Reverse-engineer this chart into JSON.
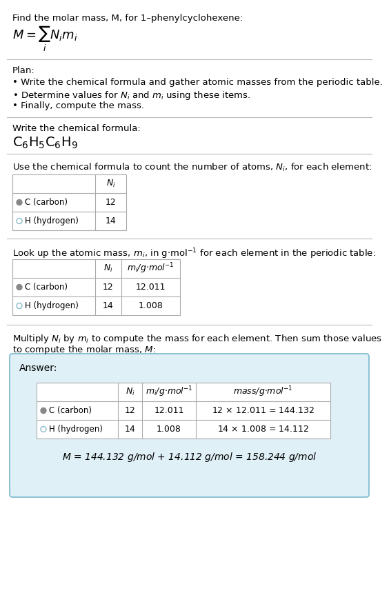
{
  "title_line1": "Find the molar mass, M, for 1–phenylcyclohexene:",
  "bg_color": "#ffffff",
  "section_line_color": "#bbbbbb",
  "plan_header": "Plan:",
  "plan_bullets": [
    "• Write the chemical formula and gather atomic masses from the periodic table.",
    "• Determine values for $N_i$ and $m_i$ using these items.",
    "• Finally, compute the mass."
  ],
  "formula_section_label": "Write the chemical formula:",
  "count_section_label": "Use the chemical formula to count the number of atoms, $N_i$, for each element:",
  "lookup_section_label": "Look up the atomic mass, $m_i$, in g$\\cdot$mol$^{-1}$ for each element in the periodic table:",
  "multiply_section_label": "Multiply $N_i$ by $m_i$ to compute the mass for each element. Then sum those values\nto compute the molar mass, $M$:",
  "answer_box_bg": "#dff0f7",
  "answer_box_border": "#7ab8cc",
  "answer_label": "Answer:",
  "carbon_color": "#888888",
  "hydrogen_color": "#88bbcc",
  "table_line_color": "#aaaaaa",
  "text_color": "#000000"
}
